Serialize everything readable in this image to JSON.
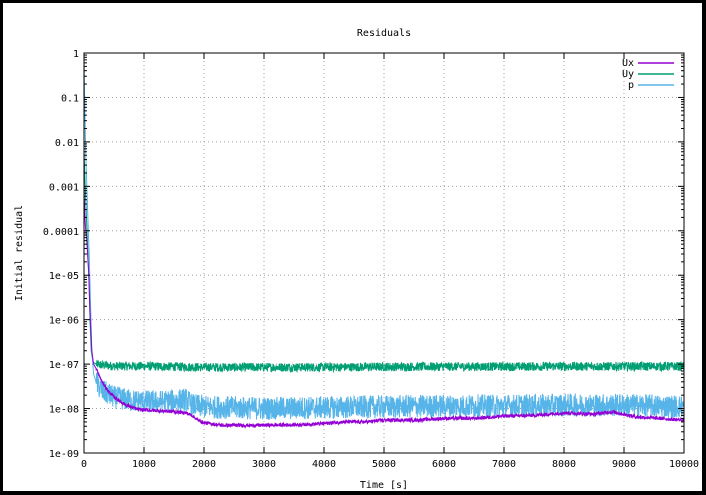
{
  "chart_data": {
    "type": "line",
    "title": "Residuals",
    "xlabel": "Time [s]",
    "ylabel": "Initial residual",
    "xlim": [
      0,
      10000
    ],
    "ylim": [
      1e-09,
      1
    ],
    "yscale": "log",
    "grid": true,
    "legend_position": "top-right",
    "x_ticks": [
      "0",
      "1000",
      "2000",
      "3000",
      "4000",
      "5000",
      "6000",
      "7000",
      "8000",
      "9000",
      "10000"
    ],
    "y_ticks": [
      "1e-09",
      "1e-08",
      "1e-07",
      "1e-06",
      "1e-05",
      "0.0001",
      "0.001",
      "0.01",
      "0.1",
      "1"
    ],
    "series": [
      {
        "name": "Ux",
        "color": "#9400d3",
        "noise": 0.04,
        "points": [
          [
            0,
            0.0008
          ],
          [
            20,
            0.00015
          ],
          [
            50,
            5e-05
          ],
          [
            80,
            1e-05
          ],
          [
            100,
            1.5e-06
          ],
          [
            130,
            2e-07
          ],
          [
            160,
            1e-07
          ],
          [
            200,
            8e-08
          ],
          [
            300,
            4e-08
          ],
          [
            400,
            2.5e-08
          ],
          [
            500,
            1.8e-08
          ],
          [
            700,
            1.2e-08
          ],
          [
            900,
            9.5e-09
          ],
          [
            1200,
            9e-09
          ],
          [
            1500,
            8.5e-09
          ],
          [
            1700,
            8e-09
          ],
          [
            1800,
            7e-09
          ],
          [
            1900,
            5.5e-09
          ],
          [
            2000,
            4.8e-09
          ],
          [
            2300,
            4.2e-09
          ],
          [
            2800,
            4.2e-09
          ],
          [
            3500,
            4.3e-09
          ],
          [
            4000,
            4.6e-09
          ],
          [
            4300,
            5e-09
          ],
          [
            4700,
            5e-09
          ],
          [
            5000,
            5.5e-09
          ],
          [
            5500,
            5.5e-09
          ],
          [
            6000,
            6e-09
          ],
          [
            6500,
            6e-09
          ],
          [
            7000,
            6.8e-09
          ],
          [
            7500,
            7e-09
          ],
          [
            8000,
            8e-09
          ],
          [
            8500,
            7.5e-09
          ],
          [
            8800,
            8.5e-09
          ],
          [
            9200,
            6.5e-09
          ],
          [
            9600,
            6e-09
          ],
          [
            10000,
            5.5e-09
          ]
        ]
      },
      {
        "name": "Uy",
        "color": "#009e73",
        "noise": 0.1,
        "points": [
          [
            0,
            0.006
          ],
          [
            20,
            0.001
          ],
          [
            50,
            0.0001
          ],
          [
            80,
            1e-05
          ],
          [
            100,
            1e-06
          ],
          [
            120,
            2e-07
          ],
          [
            150,
            1.1e-07
          ],
          [
            200,
            1e-07
          ],
          [
            300,
            9.5e-08
          ],
          [
            500,
            9e-08
          ],
          [
            1000,
            9e-08
          ],
          [
            2000,
            8.5e-08
          ],
          [
            3000,
            8.5e-08
          ],
          [
            4000,
            8.5e-08
          ],
          [
            5000,
            8.7e-08
          ],
          [
            6000,
            8.8e-08
          ],
          [
            7000,
            8.8e-08
          ],
          [
            8000,
            8.9e-08
          ],
          [
            9000,
            8.9e-08
          ],
          [
            10000,
            8.9e-08
          ]
        ]
      },
      {
        "name": "p",
        "color": "#56b4e9",
        "noise": 0.26,
        "points": [
          [
            0,
            0.6
          ],
          [
            10,
            0.1
          ],
          [
            30,
            0.005
          ],
          [
            60,
            0.0003
          ],
          [
            90,
            2e-05
          ],
          [
            110,
            2e-06
          ],
          [
            130,
            2e-07
          ],
          [
            160,
            6e-08
          ],
          [
            200,
            4e-08
          ],
          [
            300,
            2.5e-08
          ],
          [
            500,
            1.8e-08
          ],
          [
            800,
            1.5e-08
          ],
          [
            1200,
            1.4e-08
          ],
          [
            1500,
            1.5e-08
          ],
          [
            1700,
            1.6e-08
          ],
          [
            1800,
            1.2e-08
          ],
          [
            2000,
            1.1e-08
          ],
          [
            3000,
            1e-08
          ],
          [
            4000,
            1.05e-08
          ],
          [
            5000,
            1.1e-08
          ],
          [
            6000,
            1.15e-08
          ],
          [
            7000,
            1.15e-08
          ],
          [
            8000,
            1.2e-08
          ],
          [
            9000,
            1.2e-08
          ],
          [
            10000,
            1.1e-08
          ]
        ]
      }
    ]
  }
}
